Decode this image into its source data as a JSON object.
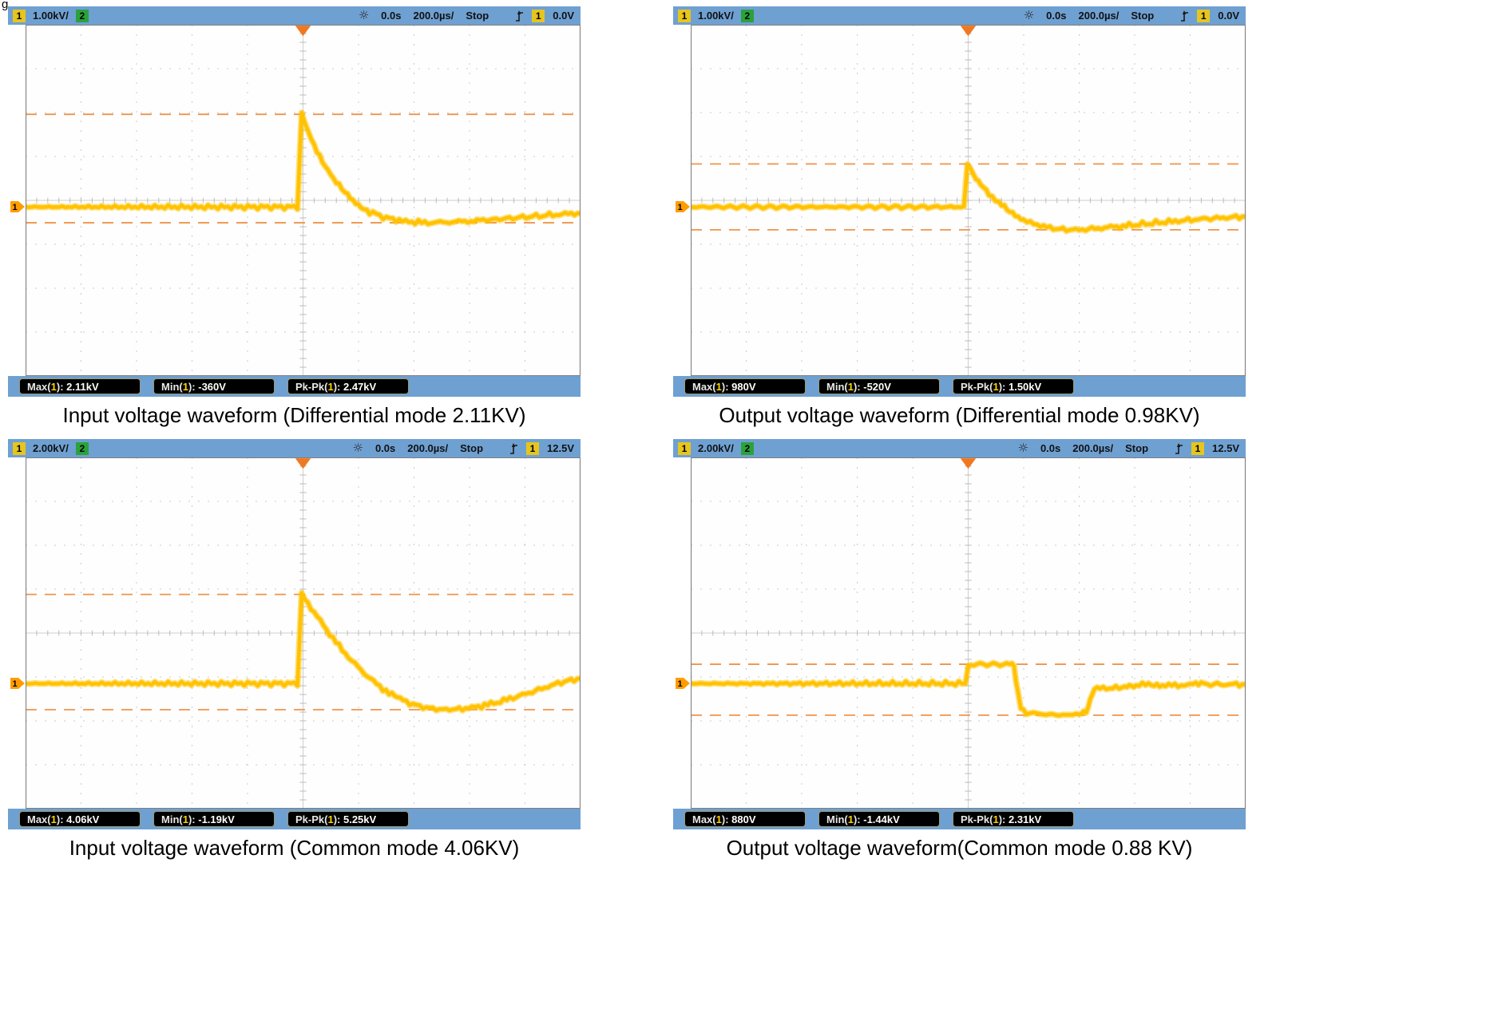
{
  "page": {
    "corner_fragment": "g."
  },
  "panels": [
    {
      "header": {
        "ch1_label": "1",
        "ch1_scale": "1.00kV/",
        "ch2_label": "2",
        "time_offset": "0.0s",
        "timebase": "200.0µs/",
        "run_state": "Stop",
        "trig_source": "1",
        "trig_level": "0.0V"
      },
      "measurements": [
        {
          "prefix": "Max(",
          "ch": "1",
          "sep": "): ",
          "value": "2.11kV"
        },
        {
          "prefix": "Min(",
          "ch": "1",
          "sep": "): ",
          "value": "-360V"
        },
        {
          "prefix": "Pk-Pk(",
          "ch": "1",
          "sep": "): ",
          "value": "2.47kV"
        }
      ],
      "caption": "Input voltage waveform (Differential mode 2.11KV)"
    },
    {
      "header": {
        "ch1_label": "1",
        "ch1_scale": "1.00kV/",
        "ch2_label": "2",
        "time_offset": "0.0s",
        "timebase": "200.0µs/",
        "run_state": "Stop",
        "trig_source": "1",
        "trig_level": "0.0V"
      },
      "measurements": [
        {
          "prefix": "Max(",
          "ch": "1",
          "sep": "): ",
          "value": "980V"
        },
        {
          "prefix": "Min(",
          "ch": "1",
          "sep": "): ",
          "value": "-520V"
        },
        {
          "prefix": "Pk-Pk(",
          "ch": "1",
          "sep": "): ",
          "value": "1.50kV"
        }
      ],
      "caption": "Output voltage waveform (Differential mode 0.98KV)"
    },
    {
      "header": {
        "ch1_label": "1",
        "ch1_scale": "2.00kV/",
        "ch2_label": "2",
        "time_offset": "0.0s",
        "timebase": "200.0µs/",
        "run_state": "Stop",
        "trig_source": "1",
        "trig_level": "12.5V"
      },
      "measurements": [
        {
          "prefix": "Max(",
          "ch": "1",
          "sep": "): ",
          "value": "4.06kV"
        },
        {
          "prefix": "Min(",
          "ch": "1",
          "sep": "): ",
          "value": "-1.19kV"
        },
        {
          "prefix": "Pk-Pk(",
          "ch": "1",
          "sep": "): ",
          "value": "5.25kV"
        }
      ],
      "caption": "Input voltage waveform (Common mode 4.06KV)"
    },
    {
      "header": {
        "ch1_label": "1",
        "ch1_scale": "2.00kV/",
        "ch2_label": "2",
        "time_offset": "0.0s",
        "timebase": "200.0µs/",
        "run_state": "Stop",
        "trig_source": "1",
        "trig_level": "12.5V"
      },
      "measurements": [
        {
          "prefix": "Max(",
          "ch": "1",
          "sep": "): ",
          "value": "880V"
        },
        {
          "prefix": "Min(",
          "ch": "1",
          "sep": "): ",
          "value": "-1.44kV"
        },
        {
          "prefix": "Pk-Pk(",
          "ch": "1",
          "sep": "): ",
          "value": "2.31kV"
        }
      ],
      "caption": "Output voltage waveform(Common mode 0.88 KV)"
    }
  ],
  "chart_data": [
    {
      "type": "line",
      "title": "Input voltage waveform (Differential mode 2.11KV)",
      "x_units": "µs",
      "y_units": "V",
      "us_per_div": 200,
      "volts_per_div": 1000,
      "divisions": {
        "x": 10,
        "y": 8
      },
      "baseline_div_from_top": 4.15,
      "trigger_time_us": 0,
      "cursors": {
        "upper_v": 2110,
        "lower_v": -360
      },
      "stats": {
        "max": "2.11kV",
        "min": "-360V",
        "pkpk": "2.47kV"
      },
      "points": [
        [
          -1000,
          0
        ],
        [
          -20,
          0
        ],
        [
          -5,
          2110
        ],
        [
          30,
          1550
        ],
        [
          70,
          1020
        ],
        [
          110,
          620
        ],
        [
          150,
          330
        ],
        [
          190,
          90
        ],
        [
          240,
          -110
        ],
        [
          300,
          -250
        ],
        [
          370,
          -330
        ],
        [
          450,
          -360
        ],
        [
          550,
          -340
        ],
        [
          660,
          -300
        ],
        [
          780,
          -240
        ],
        [
          900,
          -180
        ],
        [
          1000,
          -140
        ]
      ]
    },
    {
      "type": "line",
      "title": "Output voltage waveform (Differential mode 0.98KV)",
      "x_units": "µs",
      "y_units": "V",
      "us_per_div": 200,
      "volts_per_div": 1000,
      "divisions": {
        "x": 10,
        "y": 8
      },
      "baseline_div_from_top": 4.15,
      "trigger_time_us": 0,
      "cursors": {
        "upper_v": 980,
        "lower_v": -520
      },
      "stats": {
        "max": "980V",
        "min": "-520V",
        "pkpk": "1.50kV"
      },
      "points": [
        [
          -1000,
          0
        ],
        [
          -15,
          0
        ],
        [
          -3,
          980
        ],
        [
          20,
          760
        ],
        [
          45,
          520
        ],
        [
          75,
          300
        ],
        [
          110,
          90
        ],
        [
          150,
          -120
        ],
        [
          200,
          -300
        ],
        [
          260,
          -430
        ],
        [
          330,
          -510
        ],
        [
          400,
          -520
        ],
        [
          480,
          -480
        ],
        [
          580,
          -420
        ],
        [
          700,
          -350
        ],
        [
          850,
          -270
        ],
        [
          1000,
          -220
        ]
      ]
    },
    {
      "type": "line",
      "title": "Input voltage waveform (Common mode 4.06KV)",
      "x_units": "µs",
      "y_units": "V",
      "us_per_div": 200,
      "volts_per_div": 2000,
      "divisions": {
        "x": 10,
        "y": 8
      },
      "baseline_div_from_top": 5.15,
      "trigger_time_us": 0,
      "cursors": {
        "upper_v": 4060,
        "lower_v": -1190
      },
      "stats": {
        "max": "4.06kV",
        "min": "-1.19kV",
        "pkpk": "5.25kV"
      },
      "points": [
        [
          -1000,
          0
        ],
        [
          -20,
          0
        ],
        [
          -5,
          4060
        ],
        [
          40,
          3250
        ],
        [
          85,
          2450
        ],
        [
          130,
          1700
        ],
        [
          175,
          1050
        ],
        [
          220,
          480
        ],
        [
          265,
          -20
        ],
        [
          310,
          -440
        ],
        [
          360,
          -780
        ],
        [
          420,
          -1040
        ],
        [
          480,
          -1170
        ],
        [
          540,
          -1190
        ],
        [
          620,
          -1080
        ],
        [
          700,
          -860
        ],
        [
          780,
          -560
        ],
        [
          860,
          -240
        ],
        [
          930,
          60
        ],
        [
          1000,
          230
        ]
      ]
    },
    {
      "type": "line",
      "title": "Output voltage waveform(Common mode 0.88 KV)",
      "x_units": "µs",
      "y_units": "V",
      "us_per_div": 200,
      "volts_per_div": 2000,
      "divisions": {
        "x": 10,
        "y": 8
      },
      "baseline_div_from_top": 5.15,
      "trigger_time_us": 0,
      "cursors": {
        "upper_v": 880,
        "lower_v": -1440
      },
      "stats": {
        "max": "880V",
        "min": "-1.44kV",
        "pkpk": "2.31kV"
      },
      "points": [
        [
          -1000,
          0
        ],
        [
          -10,
          0
        ],
        [
          0,
          860
        ],
        [
          20,
          880
        ],
        [
          150,
          870
        ],
        [
          165,
          840
        ],
        [
          178,
          -400
        ],
        [
          190,
          -1100
        ],
        [
          210,
          -1330
        ],
        [
          280,
          -1400
        ],
        [
          340,
          -1440
        ],
        [
          400,
          -1390
        ],
        [
          425,
          -1340
        ],
        [
          440,
          -700
        ],
        [
          455,
          -280
        ],
        [
          475,
          -210
        ],
        [
          555,
          -200
        ],
        [
          580,
          -170
        ],
        [
          605,
          -70
        ],
        [
          650,
          -40
        ],
        [
          700,
          -60
        ],
        [
          745,
          -90
        ],
        [
          790,
          -60
        ],
        [
          850,
          -30
        ],
        [
          920,
          -40
        ],
        [
          1000,
          -40
        ]
      ]
    }
  ]
}
